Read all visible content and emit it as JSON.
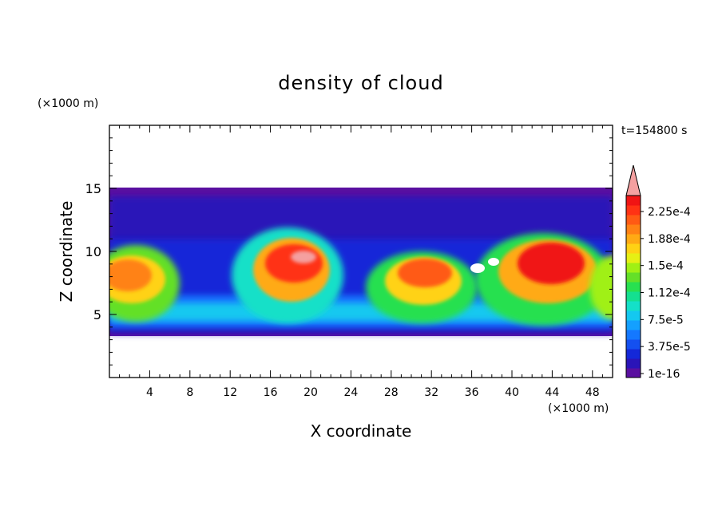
{
  "chart_data": {
    "type": "heatmap",
    "title": "density of cloud",
    "xlabel": "X coordinate",
    "ylabel": "Z coordinate",
    "x_unit": "(×1000 m)",
    "y_unit": "(×1000 m)",
    "time_label": "t=154800 s",
    "xlim": [
      0,
      50
    ],
    "ylim": [
      0,
      20
    ],
    "x_ticks": [
      "4",
      "8",
      "12",
      "16",
      "20",
      "24",
      "28",
      "32",
      "36",
      "40",
      "44",
      "48"
    ],
    "y_ticks": [
      "5",
      "10",
      "15"
    ],
    "x_tick_values": [
      4,
      8,
      12,
      16,
      20,
      24,
      28,
      32,
      36,
      40,
      44,
      48
    ],
    "y_tick_values": [
      5,
      10,
      15
    ],
    "field_extent_z": [
      3.4,
      15
    ],
    "colorbar": {
      "labels": [
        "2.25e-4",
        "1.88e-4",
        "1.5e-4",
        "1.12e-4",
        "7.5e-5",
        "3.75e-5",
        "1e-16"
      ],
      "min": 1e-16,
      "max": 0.00026,
      "colors": [
        "#5a0fa0",
        "#2a14b8",
        "#1428d8",
        "#1450f0",
        "#1478ff",
        "#14a0ff",
        "#14c8f0",
        "#14e0c8",
        "#14e090",
        "#28e050",
        "#64e028",
        "#a0f014",
        "#e6f014",
        "#ffd214",
        "#ffaa14",
        "#ff8214",
        "#ff5a14",
        "#ff3214",
        "#f01414"
      ],
      "over_color": "#f4a0a0"
    },
    "features": [
      {
        "kind": "cloud-cell",
        "x_center": 2.8,
        "z_center": 8.0,
        "intensity": 0.000188
      },
      {
        "kind": "cloud-cell",
        "x_center": 18.0,
        "z_center": 9.5,
        "intensity": 0.00023
      },
      {
        "kind": "cloud-cell",
        "x_center": 31.0,
        "z_center": 8.2,
        "intensity": 0.00019
      },
      {
        "kind": "cloud-cell",
        "x_center": 44.0,
        "z_center": 9.0,
        "intensity": 0.000225
      },
      {
        "kind": "cloud-cell",
        "x_center": 49.0,
        "z_center": 7.5,
        "intensity": 0.00012
      }
    ]
  }
}
